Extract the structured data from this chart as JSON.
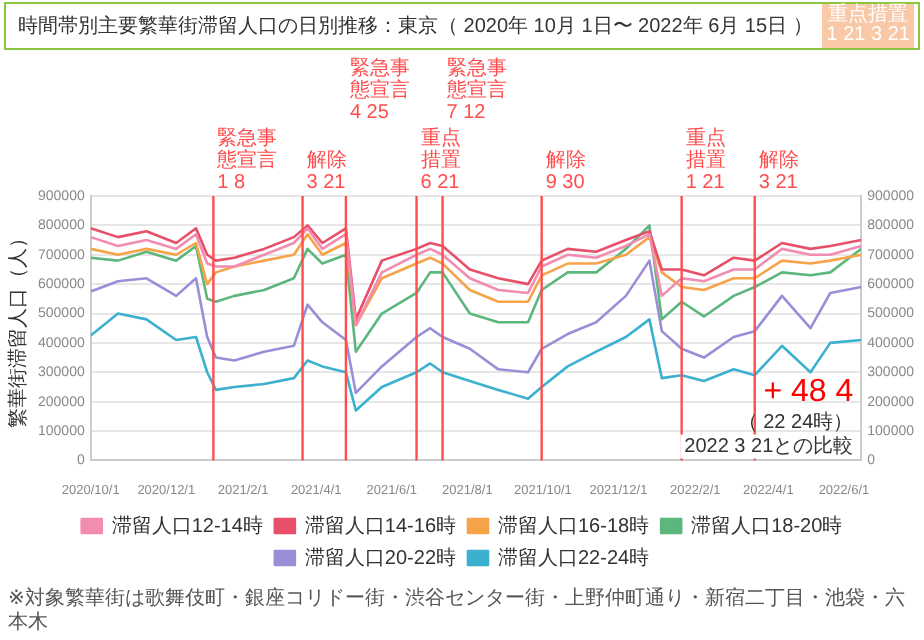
{
  "chart_data": {
    "type": "line",
    "title": "時間帯別主要繁華街滞留人口の日別推移：東京（ 2020年 10月 1日〜 2022年 6月 15日 ）",
    "ylabel": "繁華街滞留人口（人）",
    "annotations": [
      "重点措置 1 21 3 21",
      "+ 48 4",
      "（ 22 24時）",
      "2022 3 21との比較",
      "※対象繁華街は歌舞伎町・銀座コリドー街・渋谷センター街・上野仲町通り・新宿二丁目・池袋・六本木"
    ],
    "x": [
      "2020-10-01",
      "2020-10-23",
      "2020-11-15",
      "2020-12-09",
      "2020-12-25",
      "2021-01-03",
      "2021-01-10",
      "2021-01-25",
      "2021-02-18",
      "2021-03-14",
      "2021-03-25",
      "2021-04-06",
      "2021-04-25",
      "2021-05-03",
      "2021-05-24",
      "2021-06-21",
      "2021-07-02",
      "2021-07-12",
      "2021-08-03",
      "2021-08-26",
      "2021-09-19",
      "2021-09-30",
      "2021-10-21",
      "2021-11-13",
      "2021-12-07",
      "2021-12-26",
      "2022-01-05",
      "2022-01-21",
      "2022-02-08",
      "2022-03-04",
      "2022-03-21",
      "2022-04-12",
      "2022-05-05",
      "2022-05-21",
      "2022-06-15"
    ],
    "series": [
      {
        "name": "滞留人口12-14時",
        "color": "#f28cb1",
        "values": [
          760000,
          730000,
          750000,
          720000,
          770000,
          670000,
          660000,
          660000,
          700000,
          740000,
          790000,
          720000,
          770000,
          460000,
          640000,
          700000,
          720000,
          700000,
          620000,
          580000,
          570000,
          660000,
          700000,
          690000,
          730000,
          770000,
          560000,
          620000,
          610000,
          650000,
          650000,
          720000,
          700000,
          700000,
          730000
        ]
      },
      {
        "name": "滞留人口14-16時",
        "color": "#e8506a",
        "values": [
          790000,
          760000,
          780000,
          740000,
          790000,
          700000,
          680000,
          690000,
          720000,
          760000,
          800000,
          740000,
          790000,
          480000,
          680000,
          720000,
          740000,
          730000,
          650000,
          620000,
          600000,
          680000,
          720000,
          710000,
          750000,
          780000,
          650000,
          650000,
          630000,
          690000,
          680000,
          740000,
          720000,
          730000,
          750000
        ]
      },
      {
        "name": "滞留人口16-18時",
        "color": "#f6a34a",
        "values": [
          720000,
          700000,
          720000,
          700000,
          740000,
          600000,
          640000,
          660000,
          680000,
          700000,
          770000,
          700000,
          740000,
          460000,
          620000,
          670000,
          690000,
          670000,
          580000,
          540000,
          540000,
          630000,
          670000,
          670000,
          700000,
          760000,
          640000,
          590000,
          580000,
          620000,
          620000,
          680000,
          670000,
          680000,
          700000
        ]
      },
      {
        "name": "滞留人口18-20時",
        "color": "#5cb77c",
        "values": [
          690000,
          680000,
          710000,
          680000,
          730000,
          550000,
          540000,
          560000,
          580000,
          620000,
          720000,
          670000,
          700000,
          370000,
          500000,
          570000,
          640000,
          640000,
          500000,
          470000,
          470000,
          580000,
          640000,
          640000,
          720000,
          800000,
          480000,
          540000,
          490000,
          560000,
          590000,
          640000,
          630000,
          640000,
          720000
        ]
      },
      {
        "name": "滞留人口20-22時",
        "color": "#9b8ed6",
        "values": [
          575000,
          610000,
          620000,
          560000,
          620000,
          420000,
          350000,
          340000,
          370000,
          390000,
          530000,
          470000,
          410000,
          230000,
          320000,
          420000,
          450000,
          420000,
          380000,
          310000,
          300000,
          380000,
          430000,
          470000,
          560000,
          680000,
          440000,
          380000,
          350000,
          420000,
          440000,
          560000,
          450000,
          570000,
          590000
        ]
      },
      {
        "name": "滞留人口22-24時",
        "color": "#3bb1cf",
        "values": [
          425000,
          500000,
          480000,
          410000,
          420000,
          300000,
          240000,
          250000,
          260000,
          280000,
          340000,
          320000,
          300000,
          170000,
          250000,
          300000,
          330000,
          300000,
          270000,
          240000,
          210000,
          250000,
          320000,
          370000,
          420000,
          480000,
          280000,
          290000,
          270000,
          310000,
          290000,
          390000,
          300000,
          400000,
          410000
        ]
      }
    ],
    "xlim": [
      "2020-10-01",
      "2022-06-15"
    ],
    "xticks": [
      {
        "value": "2020-10-01",
        "label": "2020/10/1"
      },
      {
        "value": "2020-12-01",
        "label": "2020/12/1"
      },
      {
        "value": "2021-02-01",
        "label": "2021/2/1"
      },
      {
        "value": "2021-04-01",
        "label": "2021/4/1"
      },
      {
        "value": "2021-06-01",
        "label": "2021/6/1"
      },
      {
        "value": "2021-08-01",
        "label": "2021/8/1"
      },
      {
        "value": "2021-10-01",
        "label": "2021/10/1"
      },
      {
        "value": "2021-12-01",
        "label": "2021/12/1"
      },
      {
        "value": "2022-02-01",
        "label": "2022/2/1"
      },
      {
        "value": "2022-04-01",
        "label": "2022/4/1"
      },
      {
        "value": "2022-06-01",
        "label": "2022/6/1"
      }
    ],
    "ylim": [
      0,
      900000
    ],
    "yticks": [
      0,
      100000,
      200000,
      300000,
      400000,
      500000,
      600000,
      700000,
      800000,
      900000
    ],
    "y2lim": [
      0,
      900000
    ],
    "y2ticks": [
      0,
      100000,
      200000,
      300000,
      400000,
      500000,
      600000,
      700000,
      800000,
      900000
    ],
    "ref_lines": [
      {
        "axis": "x",
        "value": "2021-01-08",
        "label": "緊急事態宣言 1 8",
        "color": "#ff4d4d"
      },
      {
        "axis": "x",
        "value": "2021-03-21",
        "label": "解除 3 21",
        "color": "#ff4d4d"
      },
      {
        "axis": "x",
        "value": "2021-04-25",
        "label": "緊急事態宣言 4 25",
        "color": "#ff4d4d"
      },
      {
        "axis": "x",
        "value": "2021-06-21",
        "label": "重点措置 6 21",
        "color": "#ff4d4d"
      },
      {
        "axis": "x",
        "value": "2021-07-12",
        "label": "緊急事態宣言 7 12",
        "color": "#ff4d4d"
      },
      {
        "axis": "x",
        "value": "2021-09-30",
        "label": "解除 9 30",
        "color": "#ff4d4d"
      },
      {
        "axis": "x",
        "value": "2022-01-21",
        "label": "重点措置 1 21",
        "color": "#ff4d4d"
      },
      {
        "axis": "x",
        "value": "2022-03-21",
        "label": "解除 3 21",
        "color": "#ff4d4d"
      }
    ],
    "grid": "y",
    "legend": "bottom"
  }
}
